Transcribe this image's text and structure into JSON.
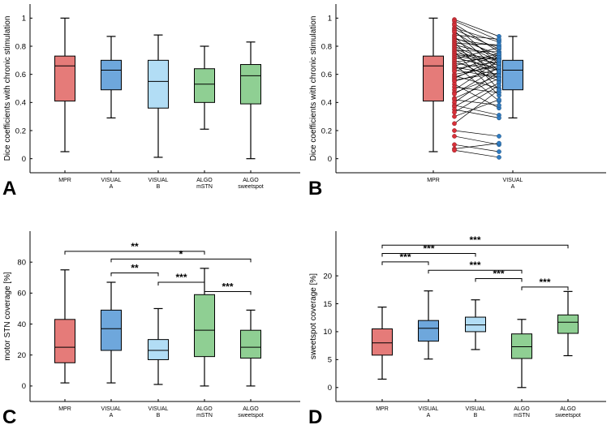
{
  "colors": {
    "MPR": "#e57b79",
    "VISUAL A": "#6ea7dc",
    "VISUAL B": "#b2ddf5",
    "ALGO mSTN": "#8fcf93",
    "ALGO sweetspot": "#8fcf93",
    "scatter_mpr": "#d8303a",
    "scatter_visual": "#2f7bc1"
  },
  "chart_data": [
    {
      "panel": "A",
      "type": "box",
      "ylabel": "Dice coefficients with chronic stimulation",
      "ylim": [
        -0.1,
        1.1
      ],
      "yticks": [
        "0",
        "0.2",
        "0.4",
        "0.6",
        "0.8",
        "1"
      ],
      "categories": [
        {
          "key": "MPR",
          "line1": "MPR",
          "line2": "",
          "min": 0.05,
          "q1": 0.41,
          "median": 0.66,
          "q3": 0.73,
          "max": 1.0
        },
        {
          "key": "VISUAL A",
          "line1": "VISUAL",
          "line2": "A",
          "min": 0.29,
          "q1": 0.49,
          "median": 0.63,
          "q3": 0.7,
          "max": 0.87
        },
        {
          "key": "VISUAL B",
          "line1": "VISUAL",
          "line2": "B",
          "min": 0.01,
          "q1": 0.36,
          "median": 0.55,
          "q3": 0.7,
          "max": 0.88
        },
        {
          "key": "ALGO mSTN",
          "line1": "ALGO",
          "line2": "mSTN",
          "min": 0.21,
          "q1": 0.4,
          "median": 0.53,
          "q3": 0.64,
          "max": 0.8
        },
        {
          "key": "ALGO sweetspot",
          "line1": "ALGO",
          "line2": "sweetspot",
          "min": 0.0,
          "q1": 0.39,
          "median": 0.59,
          "q3": 0.67,
          "max": 0.83
        }
      ]
    },
    {
      "panel": "B",
      "type": "paired-box",
      "ylabel": "Dice coefficients with chronic stimulation",
      "ylim": [
        -0.1,
        1.1
      ],
      "yticks": [
        "0",
        "0.2",
        "0.4",
        "0.6",
        "0.8",
        "1"
      ],
      "categories": [
        {
          "key": "MPR",
          "line1": "MPR",
          "line2": "",
          "min": 0.05,
          "q1": 0.41,
          "median": 0.66,
          "q3": 0.73,
          "max": 1.0
        },
        {
          "key": "VISUAL A",
          "line1": "VISUAL",
          "line2": "A",
          "min": 0.29,
          "q1": 0.49,
          "median": 0.63,
          "q3": 0.7,
          "max": 0.87
        }
      ],
      "pairs": [
        [
          0.99,
          0.87
        ],
        [
          0.98,
          0.84
        ],
        [
          0.96,
          0.76
        ],
        [
          0.95,
          0.67
        ],
        [
          0.93,
          0.83
        ],
        [
          0.92,
          0.78
        ],
        [
          0.91,
          0.62
        ],
        [
          0.9,
          0.71
        ],
        [
          0.88,
          0.85
        ],
        [
          0.87,
          0.56
        ],
        [
          0.86,
          0.74
        ],
        [
          0.85,
          0.8
        ],
        [
          0.84,
          0.69
        ],
        [
          0.83,
          0.49
        ],
        [
          0.82,
          0.81
        ],
        [
          0.81,
          0.73
        ],
        [
          0.8,
          0.66
        ],
        [
          0.79,
          0.62
        ],
        [
          0.78,
          0.58
        ],
        [
          0.77,
          0.76
        ],
        [
          0.76,
          0.45
        ],
        [
          0.75,
          0.71
        ],
        [
          0.74,
          0.7
        ],
        [
          0.73,
          0.68
        ],
        [
          0.72,
          0.64
        ],
        [
          0.71,
          0.79
        ],
        [
          0.7,
          0.55
        ],
        [
          0.69,
          0.72
        ],
        [
          0.68,
          0.63
        ],
        [
          0.67,
          0.41
        ],
        [
          0.66,
          0.75
        ],
        [
          0.65,
          0.6
        ],
        [
          0.64,
          0.69
        ],
        [
          0.63,
          0.58
        ],
        [
          0.62,
          0.74
        ],
        [
          0.6,
          0.66
        ],
        [
          0.59,
          0.5
        ],
        [
          0.58,
          0.68
        ],
        [
          0.57,
          0.72
        ],
        [
          0.56,
          0.61
        ],
        [
          0.55,
          0.64
        ],
        [
          0.53,
          0.36
        ],
        [
          0.51,
          0.47
        ],
        [
          0.49,
          0.7
        ],
        [
          0.47,
          0.59
        ],
        [
          0.46,
          0.65
        ],
        [
          0.43,
          0.57
        ],
        [
          0.42,
          0.38
        ],
        [
          0.4,
          0.62
        ],
        [
          0.38,
          0.31
        ],
        [
          0.37,
          0.54
        ],
        [
          0.35,
          0.29
        ],
        [
          0.33,
          0.52
        ],
        [
          0.3,
          0.42
        ],
        [
          0.25,
          0.49
        ],
        [
          0.2,
          0.16
        ],
        [
          0.16,
          0.1
        ],
        [
          0.1,
          0.05
        ],
        [
          0.07,
          0.11
        ],
        [
          0.06,
          0.01
        ]
      ]
    },
    {
      "panel": "C",
      "type": "box",
      "ylabel": "motor STN coverage [%]",
      "ylim": [
        -10,
        100
      ],
      "yticks": [
        "0",
        "20",
        "40",
        "60",
        "80"
      ],
      "categories": [
        {
          "key": "MPR",
          "line1": "MPR",
          "line2": "",
          "min": 2,
          "q1": 15,
          "median": 25,
          "q3": 43,
          "max": 75
        },
        {
          "key": "VISUAL A",
          "line1": "VISUAL",
          "line2": "A",
          "min": 2,
          "q1": 23,
          "median": 37,
          "q3": 49,
          "max": 67
        },
        {
          "key": "VISUAL B",
          "line1": "VISUAL",
          "line2": "B",
          "min": 1,
          "q1": 17,
          "median": 23,
          "q3": 30,
          "max": 50
        },
        {
          "key": "ALGO mSTN",
          "line1": "ALGO",
          "line2": "mSTN",
          "min": 0,
          "q1": 19,
          "median": 36,
          "q3": 59,
          "max": 76
        },
        {
          "key": "ALGO sweetspot",
          "line1": "ALGO",
          "line2": "sweetspot",
          "min": 0,
          "q1": 18,
          "median": 25,
          "q3": 36,
          "max": 49
        }
      ],
      "significance": [
        {
          "from": 0,
          "to": 3,
          "y": 87,
          "label": "**"
        },
        {
          "from": 1,
          "to": 4,
          "y": 82,
          "label": "*"
        },
        {
          "from": 1,
          "to": 2,
          "y": 73,
          "label": "**"
        },
        {
          "from": 2,
          "to": 3,
          "y": 67,
          "label": "***"
        },
        {
          "from": 3,
          "to": 4,
          "y": 61,
          "label": "***"
        }
      ]
    },
    {
      "panel": "D",
      "type": "box",
      "ylabel": "sweetspot coverage [%]",
      "ylim": [
        -2.5,
        28
      ],
      "yticks": [
        "0",
        "5",
        "10",
        "15",
        "20"
      ],
      "categories": [
        {
          "key": "MPR",
          "line1": "MPR",
          "line2": "",
          "min": 1.5,
          "q1": 5.8,
          "median": 8.0,
          "q3": 10.5,
          "max": 14.4
        },
        {
          "key": "VISUAL A",
          "line1": "VISUAL",
          "line2": "A",
          "min": 5.1,
          "q1": 8.3,
          "median": 10.6,
          "q3": 12.0,
          "max": 17.3
        },
        {
          "key": "VISUAL B",
          "line1": "VISUAL",
          "line2": "B",
          "min": 6.8,
          "q1": 10.0,
          "median": 11.2,
          "q3": 12.6,
          "max": 15.7
        },
        {
          "key": "ALGO mSTN",
          "line1": "ALGO",
          "line2": "mSTN",
          "min": 0.0,
          "q1": 5.2,
          "median": 7.3,
          "q3": 9.6,
          "max": 12.2
        },
        {
          "key": "ALGO sweetspot",
          "line1": "ALGO",
          "line2": "sweetspot",
          "min": 5.7,
          "q1": 9.7,
          "median": 11.7,
          "q3": 13.0,
          "max": 17.2
        }
      ],
      "significance": [
        {
          "from": 0,
          "to": 4,
          "y": 25.5,
          "label": "***"
        },
        {
          "from": 0,
          "to": 2,
          "y": 24.0,
          "label": "***"
        },
        {
          "from": 0,
          "to": 1,
          "y": 22.5,
          "label": "***"
        },
        {
          "from": 1,
          "to": 3,
          "y": 21.0,
          "label": "***"
        },
        {
          "from": 2,
          "to": 3,
          "y": 19.5,
          "label": "***"
        },
        {
          "from": 3,
          "to": 4,
          "y": 18.0,
          "label": "***"
        }
      ]
    }
  ]
}
